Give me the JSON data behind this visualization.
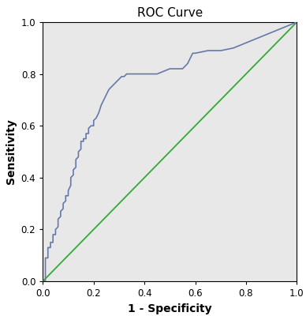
{
  "title": "ROC Curve",
  "xlabel": "1 - Specificity",
  "ylabel": "Sensitivity",
  "xlim": [
    0.0,
    1.0
  ],
  "ylim": [
    0.0,
    1.0
  ],
  "xticks": [
    0.0,
    0.2,
    0.4,
    0.6,
    0.8,
    1.0
  ],
  "yticks": [
    0.0,
    0.2,
    0.4,
    0.6,
    0.8,
    1.0
  ],
  "background_color": "#e8e8e8",
  "fig_background": "#ffffff",
  "roc_color": "#6677aa",
  "diagonal_color": "#33aa33",
  "roc_linewidth": 1.2,
  "diagonal_linewidth": 1.3,
  "title_fontsize": 11,
  "label_fontsize": 10,
  "tick_fontsize": 8.5,
  "roc_x": [
    0.0,
    0.01,
    0.01,
    0.02,
    0.02,
    0.03,
    0.03,
    0.04,
    0.04,
    0.05,
    0.05,
    0.06,
    0.06,
    0.07,
    0.07,
    0.08,
    0.08,
    0.09,
    0.09,
    0.1,
    0.1,
    0.11,
    0.11,
    0.12,
    0.12,
    0.13,
    0.13,
    0.14,
    0.14,
    0.15,
    0.15,
    0.16,
    0.16,
    0.17,
    0.17,
    0.18,
    0.18,
    0.19,
    0.2,
    0.2,
    0.21,
    0.22,
    0.23,
    0.24,
    0.25,
    0.26,
    0.27,
    0.28,
    0.29,
    0.3,
    0.31,
    0.32,
    0.33,
    0.35,
    0.37,
    0.39,
    0.42,
    0.45,
    0.5,
    0.55,
    0.57,
    0.58,
    0.59,
    0.6,
    0.65,
    0.7,
    0.75,
    0.8,
    0.85,
    0.9,
    0.95,
    1.0
  ],
  "roc_y": [
    0.0,
    0.0,
    0.09,
    0.09,
    0.13,
    0.13,
    0.15,
    0.15,
    0.18,
    0.18,
    0.2,
    0.21,
    0.24,
    0.25,
    0.27,
    0.28,
    0.3,
    0.31,
    0.33,
    0.33,
    0.35,
    0.37,
    0.4,
    0.41,
    0.43,
    0.44,
    0.47,
    0.48,
    0.5,
    0.51,
    0.54,
    0.54,
    0.55,
    0.55,
    0.57,
    0.57,
    0.59,
    0.6,
    0.6,
    0.62,
    0.63,
    0.65,
    0.68,
    0.7,
    0.72,
    0.74,
    0.75,
    0.76,
    0.77,
    0.78,
    0.79,
    0.79,
    0.8,
    0.8,
    0.8,
    0.8,
    0.8,
    0.8,
    0.82,
    0.82,
    0.84,
    0.86,
    0.88,
    0.88,
    0.89,
    0.89,
    0.9,
    0.92,
    0.94,
    0.96,
    0.98,
    1.0
  ]
}
